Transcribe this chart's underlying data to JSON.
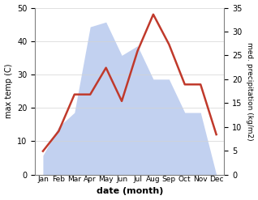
{
  "months": [
    "Jan",
    "Feb",
    "Mar",
    "Apr",
    "May",
    "Jun",
    "Jul",
    "Aug",
    "Sep",
    "Oct",
    "Nov",
    "Dec"
  ],
  "temperature": [
    7,
    13,
    24,
    24,
    32,
    22,
    37,
    48,
    39,
    27,
    27,
    12
  ],
  "precipitation": [
    4,
    10,
    13,
    31,
    32,
    25,
    27,
    20,
    20,
    13,
    13,
    0
  ],
  "temp_color": "#c0392b",
  "precip_color": "#b8c9ee",
  "left_ylim": [
    0,
    50
  ],
  "right_ylim": [
    0,
    35
  ],
  "left_yticks": [
    0,
    10,
    20,
    30,
    40,
    50
  ],
  "right_yticks": [
    0,
    5,
    10,
    15,
    20,
    25,
    30,
    35
  ],
  "xlabel": "date (month)",
  "ylabel_left": "max temp (C)",
  "ylabel_right": "med. precipitation (kg/m2)"
}
